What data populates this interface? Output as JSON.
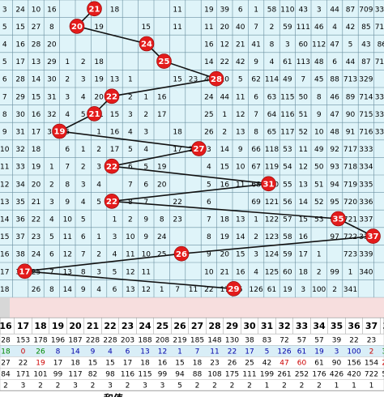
{
  "chart_data": {
    "type": "table",
    "title": "",
    "columns_visible": [
      16,
      17,
      18,
      19,
      20,
      21,
      22,
      23,
      24,
      25,
      26,
      27,
      28,
      29,
      30,
      31,
      32,
      33,
      34,
      35,
      36,
      37,
      38
    ],
    "highlight_color": "#e31b1b",
    "trend_line": {
      "note_values": [
        21,
        20,
        24,
        25,
        28,
        22,
        21,
        19,
        27,
        22,
        31,
        22,
        35,
        37,
        26,
        17,
        29
      ],
      "rows_count": 17
    },
    "rows": [
      [
        "3",
        "24",
        "10",
        "16",
        "",
        "",
        "",
        "18",
        "",
        "",
        "",
        "11",
        "",
        "19",
        "39",
        "6",
        "1",
        "58",
        "110",
        "43",
        "3",
        "44",
        "87",
        "709",
        "330"
      ],
      [
        "5",
        "15",
        "27",
        "8",
        "",
        "",
        "19",
        "",
        "",
        "15",
        "",
        "11",
        "",
        "11",
        "20",
        "40",
        "7",
        "2",
        "59",
        "111",
        "46",
        "4",
        "42",
        "85",
        "710",
        "329"
      ],
      [
        "4",
        "16",
        "28",
        "20",
        "",
        "",
        "",
        "",
        "",
        "",
        "",
        "",
        "",
        "16",
        "12",
        "21",
        "41",
        "8",
        "3",
        "60",
        "112",
        "47",
        "5",
        "43",
        "86",
        "711",
        "327"
      ],
      [
        "5",
        "17",
        "13",
        "29",
        "1",
        "2",
        "18",
        "",
        "",
        "",
        "",
        "",
        "",
        "14",
        "22",
        "42",
        "9",
        "4",
        "61",
        "113",
        "48",
        "6",
        "44",
        "87",
        "712",
        "328"
      ],
      [
        "6",
        "28",
        "14",
        "30",
        "2",
        "3",
        "19",
        "13",
        "1",
        "",
        "",
        "15",
        "23",
        "43",
        "10",
        "5",
        "62",
        "114",
        "49",
        "7",
        "45",
        "88",
        "713",
        "329"
      ],
      [
        "7",
        "29",
        "15",
        "31",
        "3",
        "4",
        "20",
        "14",
        "2",
        "1",
        "16",
        "",
        "",
        "24",
        "44",
        "11",
        "6",
        "63",
        "115",
        "50",
        "8",
        "46",
        "89",
        "714",
        "330"
      ],
      [
        "8",
        "30",
        "16",
        "32",
        "4",
        "5",
        "21",
        "15",
        "3",
        "2",
        "17",
        "",
        "",
        "25",
        "1",
        "12",
        "7",
        "64",
        "116",
        "51",
        "9",
        "47",
        "90",
        "715",
        "331"
      ],
      [
        "9",
        "31",
        "17",
        "33",
        "5",
        "",
        "1",
        "16",
        "4",
        "3",
        "",
        "18",
        "",
        "26",
        "2",
        "13",
        "8",
        "65",
        "117",
        "52",
        "10",
        "48",
        "91",
        "716",
        "332"
      ],
      [
        "10",
        "32",
        "18",
        "",
        "6",
        "1",
        "2",
        "17",
        "5",
        "4",
        "",
        "17",
        "27",
        "3",
        "14",
        "9",
        "66",
        "118",
        "53",
        "11",
        "49",
        "92",
        "717",
        "333"
      ],
      [
        "11",
        "33",
        "19",
        "1",
        "7",
        "2",
        "3",
        "18",
        "6",
        "5",
        "19",
        "",
        "",
        "4",
        "15",
        "10",
        "67",
        "119",
        "54",
        "12",
        "50",
        "93",
        "718",
        "334"
      ],
      [
        "12",
        "34",
        "20",
        "2",
        "8",
        "3",
        "4",
        "",
        "7",
        "6",
        "20",
        "",
        "",
        "5",
        "16",
        "11",
        "68",
        "120",
        "55",
        "13",
        "51",
        "94",
        "719",
        "335"
      ],
      [
        "13",
        "35",
        "21",
        "3",
        "9",
        "4",
        "5",
        "1",
        "8",
        "7",
        "",
        "22",
        "",
        "6",
        "",
        "",
        "69",
        "121",
        "56",
        "14",
        "52",
        "95",
        "720",
        "336"
      ],
      [
        "14",
        "36",
        "22",
        "4",
        "10",
        "5",
        "",
        "1",
        "2",
        "9",
        "8",
        "23",
        "",
        "7",
        "18",
        "13",
        "1",
        "122",
        "57",
        "15",
        "53",
        "96",
        "721",
        "337"
      ],
      [
        "15",
        "37",
        "23",
        "5",
        "11",
        "6",
        "1",
        "3",
        "10",
        "9",
        "24",
        "",
        "",
        "8",
        "19",
        "14",
        "2",
        "123",
        "58",
        "16",
        "",
        "97",
        "722",
        "338"
      ],
      [
        "16",
        "38",
        "24",
        "6",
        "12",
        "7",
        "2",
        "4",
        "11",
        "10",
        "25",
        "",
        "",
        "9",
        "20",
        "15",
        "3",
        "124",
        "59",
        "17",
        "1",
        "",
        "723",
        "339"
      ],
      [
        "17",
        "39",
        "25",
        "7",
        "13",
        "8",
        "3",
        "5",
        "12",
        "11",
        "",
        "",
        "",
        "10",
        "21",
        "16",
        "4",
        "125",
        "60",
        "18",
        "2",
        "99",
        "1",
        "340"
      ],
      [
        "18",
        "",
        "26",
        "8",
        "14",
        "9",
        "4",
        "6",
        "13",
        "12",
        "1",
        "7",
        "11",
        "22",
        "17",
        "5",
        "126",
        "61",
        "19",
        "3",
        "100",
        "2",
        "341",
        ""
      ]
    ],
    "stat_rows": [
      {
        "label": "",
        "values": [
          28,
          153,
          178,
          196,
          187,
          228,
          228,
          203,
          188,
          208,
          219,
          185,
          148,
          130,
          38,
          83,
          72,
          57,
          57,
          39,
          22,
          23,
          14
        ]
      },
      {
        "label": "",
        "values": [
          18,
          0,
          26,
          8,
          14,
          9,
          4,
          6,
          13,
          12,
          1,
          7,
          11,
          22,
          17,
          5,
          126,
          61,
          19,
          3,
          100,
          2,
          341
        ]
      },
      {
        "label": "",
        "values": [
          27,
          22,
          19,
          17,
          18,
          15,
          15,
          17,
          18,
          16,
          15,
          18,
          23,
          26,
          25,
          42,
          47,
          60,
          61,
          90,
          156,
          154,
          229
        ]
      },
      {
        "label": "",
        "values": [
          84,
          171,
          101,
          99,
          117,
          82,
          98,
          116,
          115,
          99,
          94,
          88,
          108,
          175,
          111,
          199,
          261,
          252,
          176,
          426,
          420,
          722,
          527
        ]
      },
      {
        "label": "",
        "values": [
          2,
          3,
          2,
          2,
          3,
          2,
          3,
          2,
          3,
          3,
          5,
          2,
          2,
          2,
          2,
          1,
          2,
          2,
          2,
          1,
          1,
          1,
          1
        ]
      }
    ],
    "footer_label": "和值"
  }
}
